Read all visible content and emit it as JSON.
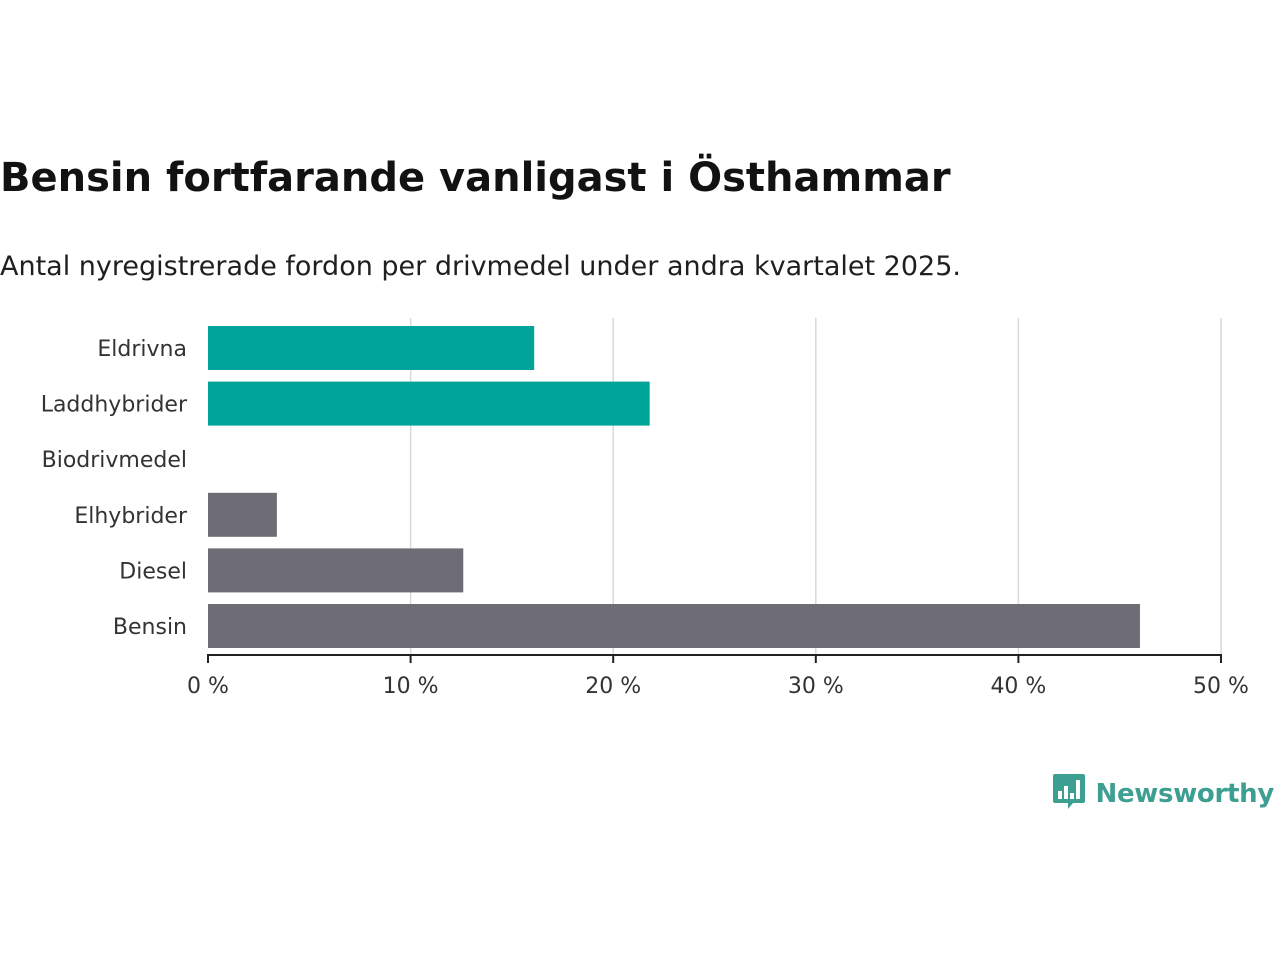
{
  "title": "Bensin fortfarande vanligast i Östhammar",
  "subtitle": "Antal nyregistrerade fordon per drivmedel under andra kvartalet 2025.",
  "brand": {
    "name": "Newsworthy",
    "color": "#3d9e92",
    "icon": "bar-chart-speech-bubble-icon"
  },
  "chart_data": {
    "type": "bar",
    "orientation": "horizontal",
    "categories": [
      "Eldrivna",
      "Laddhybrider",
      "Biodrivmedel",
      "Elhybrider",
      "Diesel",
      "Bensin"
    ],
    "values": [
      16.1,
      21.8,
      0,
      3.4,
      12.6,
      46.0
    ],
    "colors": [
      "#00a499",
      "#00a499",
      "#00a499",
      "#6e6c74",
      "#6e6c74",
      "#6e6c74"
    ],
    "xlim": [
      0,
      50
    ],
    "xticks": [
      0,
      10,
      20,
      30,
      40,
      50
    ],
    "xtick_labels": [
      "0 %",
      "10 %",
      "20 %",
      "30 %",
      "40 %",
      "50 %"
    ],
    "grid": "vertical",
    "legend": "none"
  }
}
